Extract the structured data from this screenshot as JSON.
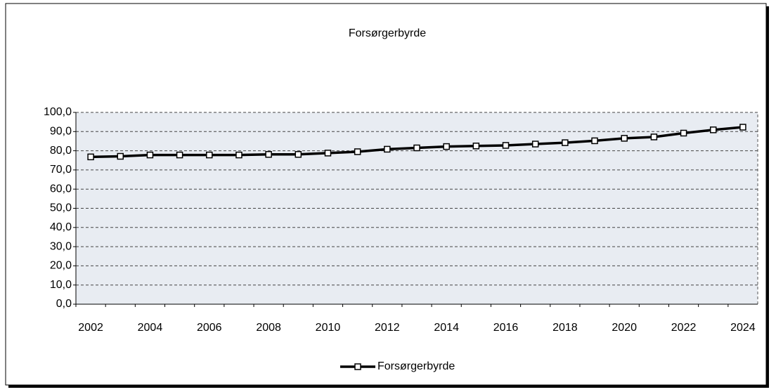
{
  "chart_data": {
    "type": "line",
    "title": "Forsørgerbyrde",
    "categories": [
      "2002",
      null,
      "2004",
      null,
      "2006",
      null,
      "2008",
      null,
      "2010",
      null,
      "2012",
      null,
      "2014",
      null,
      "2016",
      null,
      "2018",
      null,
      "2020",
      null,
      "2022",
      null,
      "2024"
    ],
    "series": [
      {
        "name": "Forsørgerbyrde",
        "color": "#000000",
        "values": [
          76.8,
          77.1,
          77.8,
          77.8,
          77.8,
          77.8,
          78.1,
          78.1,
          78.8,
          79.5,
          80.8,
          81.5,
          82.2,
          82.5,
          82.8,
          83.5,
          84.2,
          85.2,
          86.5,
          87.2,
          89.2,
          90.9,
          92.3
        ]
      }
    ],
    "ylim": [
      0,
      100
    ],
    "yticks": [
      {
        "value": 0,
        "label": "0,0"
      },
      {
        "value": 10,
        "label": "10,0"
      },
      {
        "value": 20,
        "label": "20,0"
      },
      {
        "value": 30,
        "label": "30,0"
      },
      {
        "value": 40,
        "label": "40,0"
      },
      {
        "value": 50,
        "label": "50,0"
      },
      {
        "value": 60,
        "label": "60,0"
      },
      {
        "value": 70,
        "label": "70,0"
      },
      {
        "value": 80,
        "label": "80,0"
      },
      {
        "value": 90,
        "label": "90,0"
      },
      {
        "value": 100,
        "label": "100,0"
      }
    ],
    "grid": true,
    "legend": "bottom"
  }
}
